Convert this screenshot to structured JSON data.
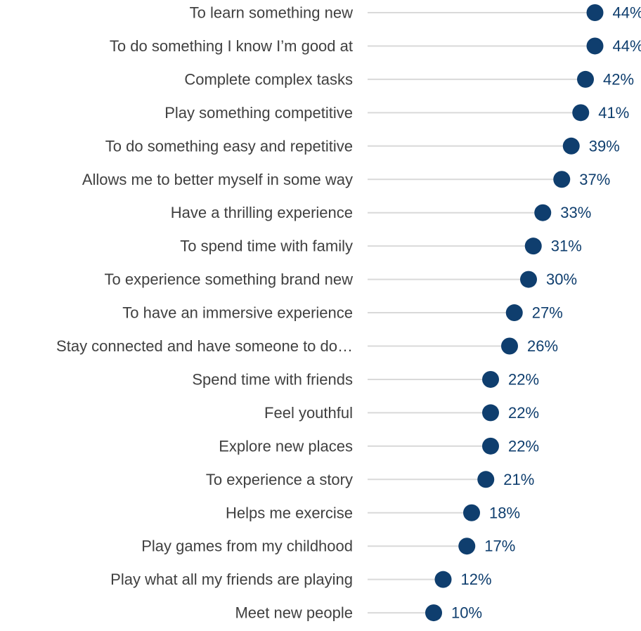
{
  "chart_data": {
    "type": "scatter",
    "subtype": "lollipop",
    "orientation": "horizontal",
    "categories": [
      "To learn something new",
      "To do something I know I’m good at",
      "Complete complex tasks",
      "Play something competitive",
      "To do something easy and repetitive",
      "Allows me to better myself in some way",
      "Have a thrilling experience",
      "To spend time with family",
      "To experience something brand new",
      "To have an immersive experience",
      "Stay connected and have someone to do…",
      "Spend time with friends",
      "Feel youthful",
      "Explore new places",
      "To experience a story",
      "Helps me exercise",
      "Play games from my childhood",
      "Play what all my friends are playing",
      "Meet new people"
    ],
    "values": [
      44,
      44,
      42,
      41,
      39,
      37,
      33,
      31,
      30,
      27,
      26,
      22,
      22,
      22,
      21,
      18,
      17,
      12,
      10
    ],
    "value_labels": [
      "44%",
      "44%",
      "42%",
      "41%",
      "39%",
      "37%",
      "33%",
      "31%",
      "30%",
      "27%",
      "26%",
      "22%",
      "22%",
      "22%",
      "21%",
      "18%",
      "17%",
      "12%",
      "10%"
    ],
    "unit": "%",
    "xlim": [
      0,
      44
    ],
    "title": "",
    "xlabel": "",
    "ylabel": "",
    "grid": false,
    "legend": "none",
    "colors": {
      "marker": "#0f3e6e",
      "value_label": "#0f3e6e",
      "category_label": "#404040",
      "stem": "#d9d9d9"
    }
  }
}
